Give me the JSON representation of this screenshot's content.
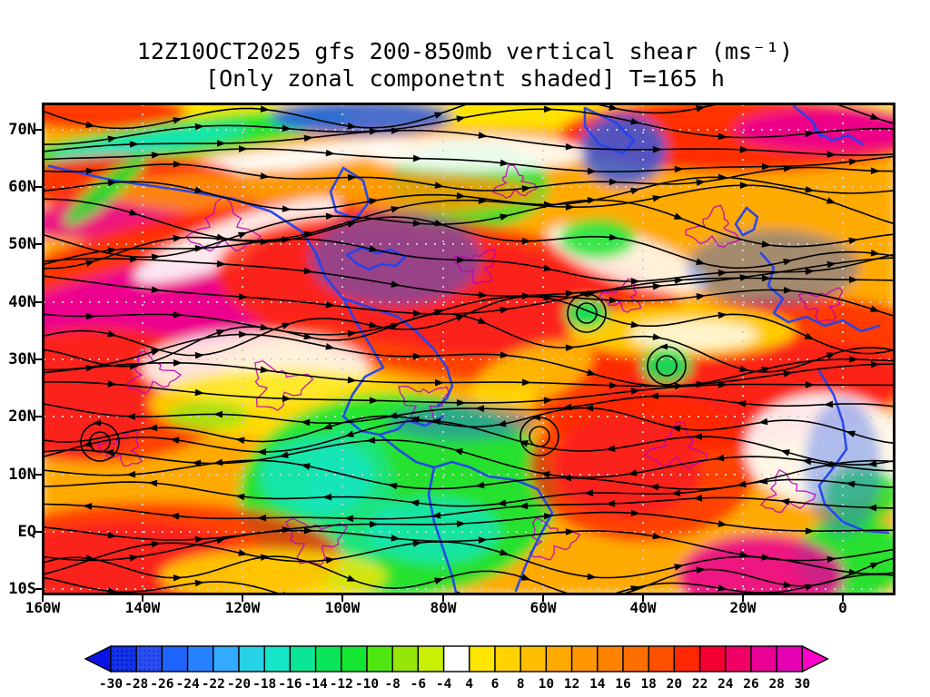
{
  "title": {
    "line1": "12Z10OCT2025 gfs 200-850mb vertical shear (ms⁻¹)",
    "line2": "[Only zonal componetnt shaded] T=165 h"
  },
  "axes": {
    "y_labels": [
      "70N",
      "60N",
      "50N",
      "40N",
      "30N",
      "20N",
      "10N",
      "EQ",
      "10S"
    ],
    "x_labels": [
      "160W",
      "140W",
      "120W",
      "100W",
      "80W",
      "60W",
      "40W",
      "20W",
      "0"
    ]
  },
  "colorbar": {
    "units": "ms⁻¹",
    "tick_labels": [
      "-30",
      "-28",
      "-26",
      "-24",
      "-22",
      "-20",
      "-18",
      "-16",
      "-14",
      "-12",
      "-10",
      "-8",
      "-6",
      "-4",
      "4",
      "6",
      "8",
      "10",
      "12",
      "14",
      "16",
      "18",
      "20",
      "22",
      "24",
      "26",
      "28",
      "30"
    ],
    "cell_colors": [
      "#1236E8",
      "#2A50F2",
      "#1E64FF",
      "#2882FF",
      "#32AAFF",
      "#28D2E6",
      "#14E6C8",
      "#0AE696",
      "#0AE65A",
      "#14E632",
      "#50E614",
      "#96E60A",
      "#C8F000",
      "#FFFFFF",
      "#FFE600",
      "#FFD200",
      "#FFBE00",
      "#FFAA00",
      "#FF9600",
      "#FF8200",
      "#FF6E00",
      "#FF5000",
      "#FF2800",
      "#F50032",
      "#F00064",
      "#EB0096",
      "#E600B4"
    ],
    "left_arrow_color": "#0A14E6",
    "right_arrow_color": "#FF00C8",
    "patterned_cell_indices": [
      0,
      1
    ]
  },
  "map": {
    "streamline_color": "#000000",
    "coastline_color": "#2244EE",
    "contour_color": "#BB00BB",
    "grid_dot_color": "#CFCFCF"
  },
  "chart_data": {
    "type": "heatmap",
    "title": "12Z10OCT2025 gfs 200-850mb vertical shear (ms⁻¹)",
    "subtitle": "[Only zonal componetnt shaded] T=165 h",
    "units": "ms⁻¹",
    "legend_position": "bottom",
    "x_ticks": [
      "160W",
      "140W",
      "120W",
      "100W",
      "80W",
      "60W",
      "40W",
      "20W",
      "0"
    ],
    "y_ticks": [
      "70N",
      "60N",
      "50N",
      "40N",
      "30N",
      "20N",
      "10N",
      "EQ",
      "10S"
    ],
    "shade_levels": [
      -30,
      -28,
      -26,
      -24,
      -22,
      -20,
      -18,
      -16,
      -14,
      -12,
      -10,
      -8,
      -6,
      -4,
      4,
      6,
      8,
      10,
      12,
      14,
      16,
      18,
      20,
      22,
      24,
      26,
      28,
      30
    ],
    "overlays": [
      "streamlines",
      "coastlines",
      "magenta-contours",
      "dotted-latlon-grid"
    ],
    "approx_zonal_shear_grid": {
      "lats": [
        "70N",
        "60N",
        "50N",
        "40N",
        "30N",
        "20N",
        "10N",
        "EQ",
        "10S"
      ],
      "lons": [
        "160W",
        "140W",
        "120W",
        "100W",
        "80W",
        "60W",
        "40W",
        "20W",
        "0"
      ],
      "values": [
        [
          -14,
          10,
          0,
          12,
          -8,
          8,
          14,
          20,
          12
        ],
        [
          20,
          26,
          0,
          6,
          -10,
          18,
          12,
          6,
          14
        ],
        [
          28,
          30,
          12,
          20,
          26,
          22,
          28,
          22,
          20
        ],
        [
          14,
          -8,
          2,
          30,
          30,
          28,
          14,
          24,
          26
        ],
        [
          24,
          12,
          6,
          2,
          26,
          20,
          10,
          28,
          28
        ],
        [
          24,
          10,
          0,
          -8,
          4,
          6,
          -6,
          10,
          6
        ],
        [
          10,
          6,
          -8,
          -12,
          -10,
          6,
          22,
          14,
          0
        ],
        [
          18,
          12,
          -10,
          -16,
          -12,
          0,
          18,
          12,
          -6
        ],
        [
          22,
          14,
          10,
          -8,
          -14,
          4,
          10,
          24,
          -8
        ]
      ]
    }
  }
}
